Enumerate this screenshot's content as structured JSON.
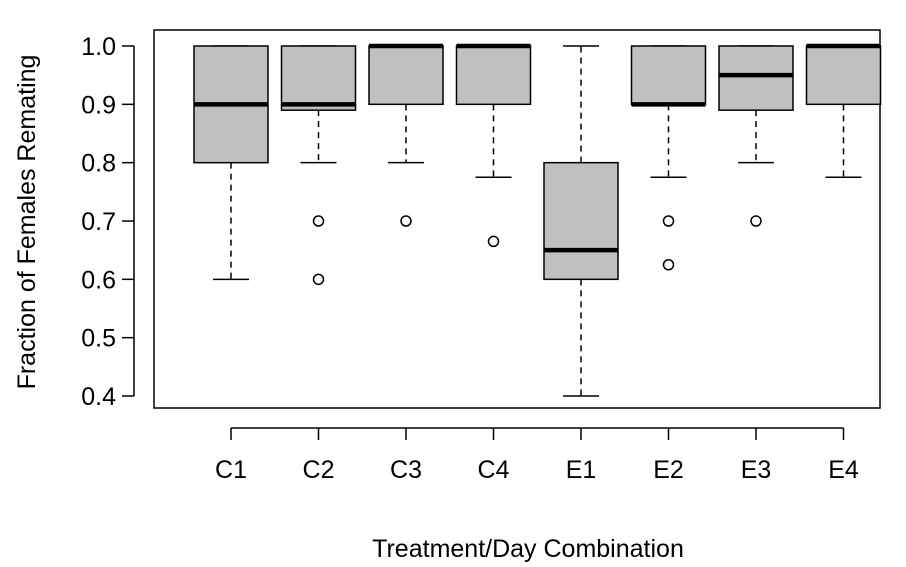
{
  "chart_data": {
    "type": "boxplot",
    "title": "",
    "xlabel": "Treatment/Day Combination",
    "ylabel": "Fraction of Females Remating",
    "ylim": [
      0.38,
      1.02
    ],
    "yticks": [
      "0.4",
      "0.5",
      "0.6",
      "0.7",
      "0.8",
      "0.9",
      "1.0"
    ],
    "grid": false,
    "legend": "none",
    "box_color": "#c0c0c0",
    "categories": [
      "C1",
      "C2",
      "C3",
      "C4",
      "E1",
      "E2",
      "E3",
      "E4"
    ],
    "boxes": [
      {
        "min": 0.6,
        "q1": 0.8,
        "median": 0.9,
        "q3": 1.0,
        "max": 1.0,
        "outliers": []
      },
      {
        "min": 0.8,
        "q1": 0.89,
        "median": 0.9,
        "q3": 1.0,
        "max": 1.0,
        "outliers": [
          0.7,
          0.6
        ]
      },
      {
        "min": 0.8,
        "q1": 0.9,
        "median": 1.0,
        "q3": 1.0,
        "max": 1.0,
        "outliers": [
          0.7
        ]
      },
      {
        "min": 0.775,
        "q1": 0.9,
        "median": 1.0,
        "q3": 1.0,
        "max": 1.0,
        "outliers": [
          0.665
        ]
      },
      {
        "min": 0.4,
        "q1": 0.6,
        "median": 0.65,
        "q3": 0.8,
        "max": 1.0,
        "outliers": []
      },
      {
        "min": 0.775,
        "q1": 0.9,
        "median": 0.9,
        "q3": 1.0,
        "max": 1.0,
        "outliers": [
          0.7,
          0.625
        ]
      },
      {
        "min": 0.8,
        "q1": 0.89,
        "median": 0.95,
        "q3": 1.0,
        "max": 1.0,
        "outliers": [
          0.7
        ]
      },
      {
        "min": 0.775,
        "q1": 0.9,
        "median": 1.0,
        "q3": 1.0,
        "max": 1.0,
        "outliers": []
      }
    ]
  }
}
